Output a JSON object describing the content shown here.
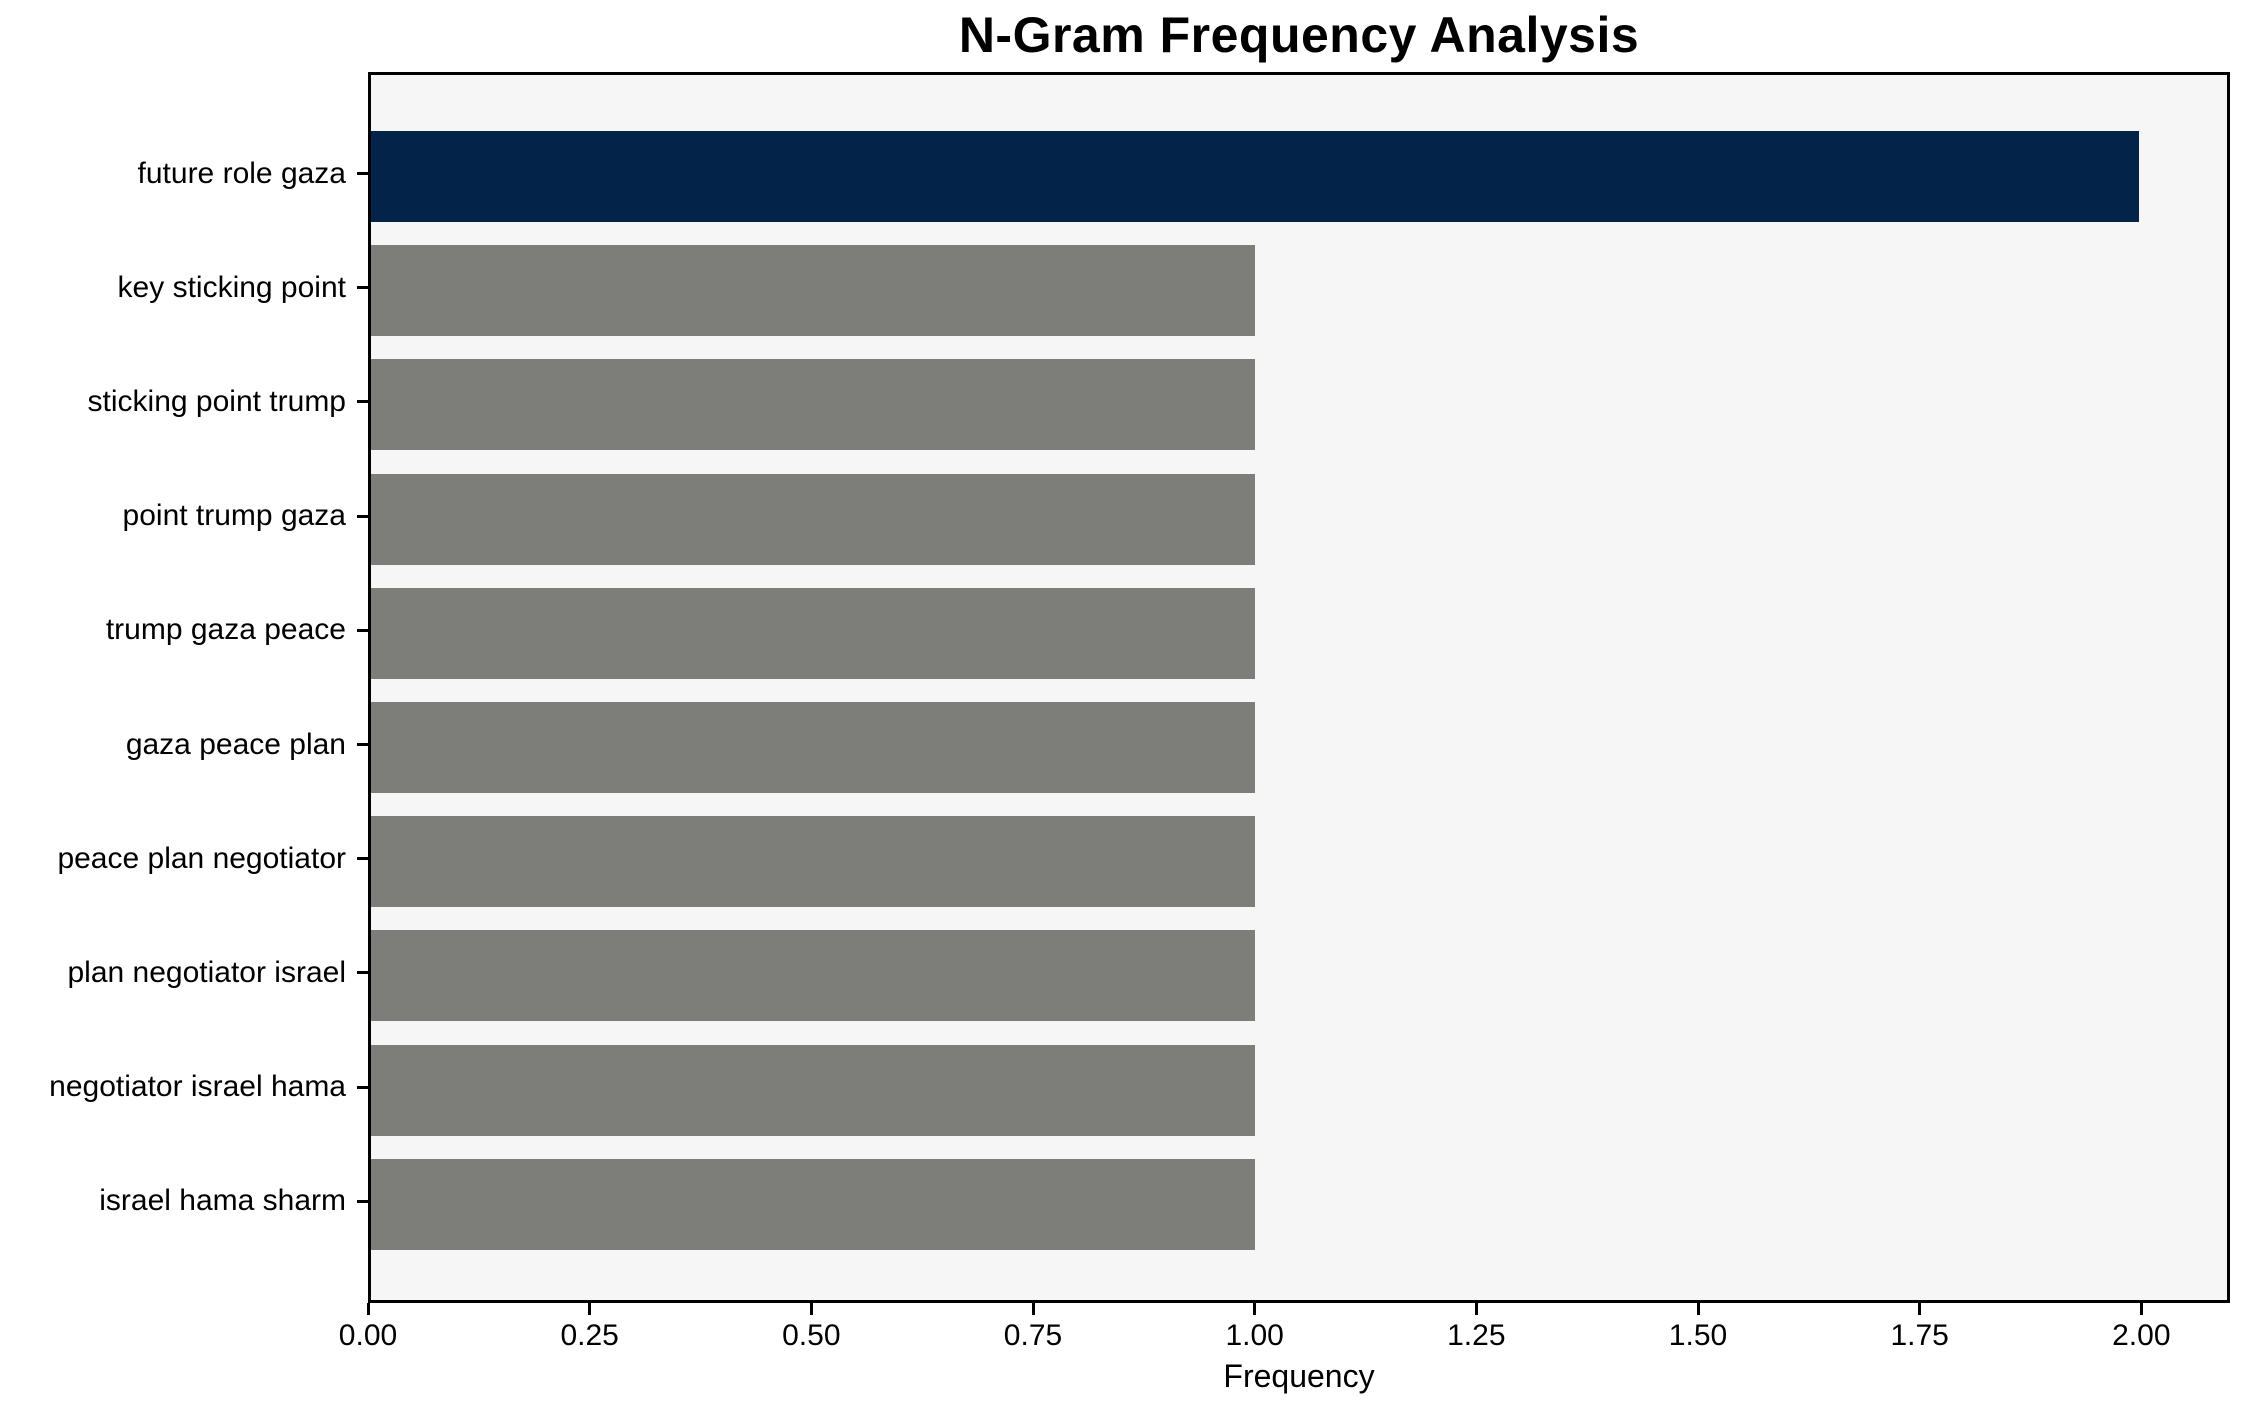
{
  "chart_data": {
    "type": "bar",
    "orientation": "horizontal",
    "title": "N-Gram Frequency Analysis",
    "xlabel": "Frequency",
    "ylabel": "",
    "categories": [
      "future role gaza",
      "key sticking point",
      "sticking point trump",
      "point trump gaza",
      "trump gaza peace",
      "gaza peace plan",
      "peace plan negotiator",
      "plan negotiator israel",
      "negotiator israel hama",
      "israel hama sharm"
    ],
    "values": [
      2.0,
      1.0,
      1.0,
      1.0,
      1.0,
      1.0,
      1.0,
      1.0,
      1.0,
      1.0
    ],
    "bar_colors": [
      "#032349",
      "#7d7d7a",
      "#7d7d7a",
      "#7d7d7a",
      "#7d7d7a",
      "#7d7d7a",
      "#7d7d7a",
      "#7d7d7a",
      "#7d7d7a",
      "#7d7d7a"
    ],
    "xlim": [
      0,
      2.1
    ],
    "x_tick_labels": [
      "0.00",
      "0.25",
      "0.50",
      "0.75",
      "1.00",
      "1.25",
      "1.50",
      "1.75",
      "2.00"
    ],
    "x_tick_values": [
      0,
      0.25,
      0.5,
      0.75,
      1.0,
      1.25,
      1.5,
      1.75,
      2.0
    ],
    "grid": false,
    "legend": false,
    "colors": {
      "highlight_bar": "#032349",
      "default_bar": "#7d7d7a",
      "plot_background": "#f6f6f6",
      "figure_background": "#ffffff",
      "text": "#000000",
      "spine": "#000000"
    }
  }
}
